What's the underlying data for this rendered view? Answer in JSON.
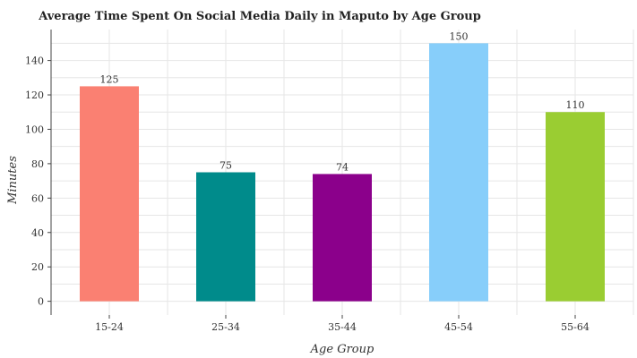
{
  "chart_data": {
    "type": "bar",
    "title": "Average Time Spent On Social Media Daily in Maputo by Age Group",
    "xlabel": "Age Group",
    "ylabel": "Minutes",
    "categories": [
      "15-24",
      "25-34",
      "35-44",
      "45-54",
      "55-64"
    ],
    "values": [
      125,
      75,
      74,
      150,
      110
    ],
    "colors": [
      "#FA8072",
      "#008B8B",
      "#8B008B",
      "#87CEFA",
      "#9ACD32"
    ],
    "ylim": [
      -8,
      158
    ],
    "yticks": [
      0,
      20,
      40,
      60,
      80,
      100,
      120,
      140
    ],
    "grid": true,
    "data_labels": true
  }
}
